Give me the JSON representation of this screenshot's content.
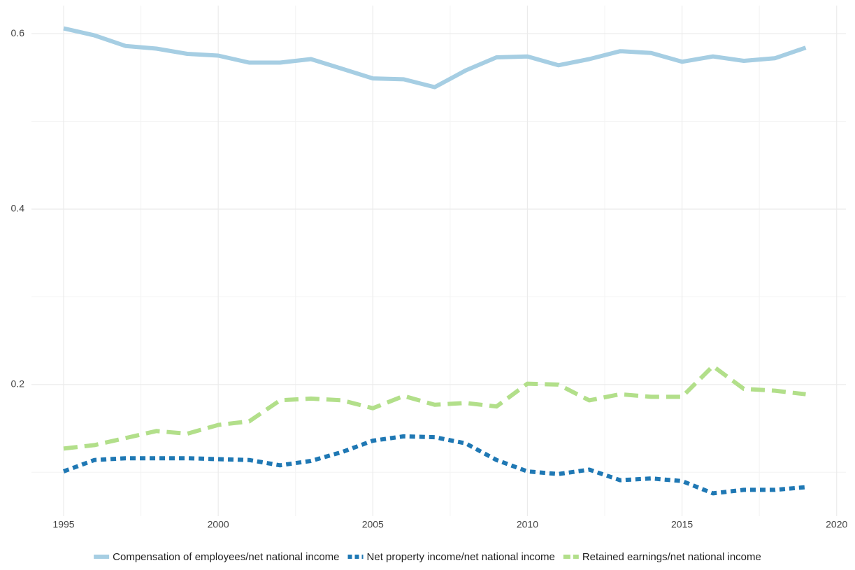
{
  "chart_data": {
    "type": "line",
    "x": [
      1995,
      1996,
      1997,
      1998,
      1999,
      2000,
      2001,
      2002,
      2003,
      2004,
      2005,
      2006,
      2007,
      2008,
      2009,
      2010,
      2011,
      2012,
      2013,
      2014,
      2015,
      2016,
      2017,
      2018,
      2019
    ],
    "series": [
      {
        "name": "Compensation of employees/net national income",
        "color": "#a6cee3",
        "dash": "solid",
        "values": [
          0.606,
          0.598,
          0.586,
          0.583,
          0.577,
          0.575,
          0.567,
          0.567,
          0.571,
          0.56,
          0.549,
          0.548,
          0.539,
          0.558,
          0.573,
          0.574,
          0.564,
          0.571,
          0.58,
          0.578,
          0.568,
          0.574,
          0.569,
          0.572,
          0.584
        ]
      },
      {
        "name": "Net property income/net national income",
        "color": "#1f78b4",
        "dash": "dotted",
        "values": [
          0.101,
          0.114,
          0.116,
          0.116,
          0.116,
          0.115,
          0.114,
          0.108,
          0.113,
          0.123,
          0.136,
          0.141,
          0.14,
          0.133,
          0.114,
          0.101,
          0.098,
          0.103,
          0.091,
          0.093,
          0.09,
          0.076,
          0.08,
          0.08,
          0.083
        ]
      },
      {
        "name": "Retained earnings/net national income",
        "color": "#b2df8a",
        "dash": "dashed",
        "values": [
          0.127,
          0.131,
          0.139,
          0.147,
          0.144,
          0.154,
          0.158,
          0.182,
          0.184,
          0.182,
          0.173,
          0.187,
          0.177,
          0.179,
          0.175,
          0.201,
          0.2,
          0.182,
          0.189,
          0.186,
          0.186,
          0.221,
          0.195,
          0.193,
          0.189
        ]
      }
    ],
    "xlim": [
      1993.96,
      2020.3
    ],
    "xticks": [
      1995,
      2000,
      2005,
      2010,
      2015,
      2020
    ],
    "x_minor_ticks": [
      1997.5,
      2002.5,
      2007.5,
      2012.5,
      2017.5
    ],
    "ylim": [
      0.05,
      0.632
    ],
    "yticks": [
      0.2,
      0.4,
      0.6
    ],
    "y_minor_ticks": [
      0.1,
      0.3,
      0.5
    ],
    "grid": true,
    "legend": "bottom"
  }
}
